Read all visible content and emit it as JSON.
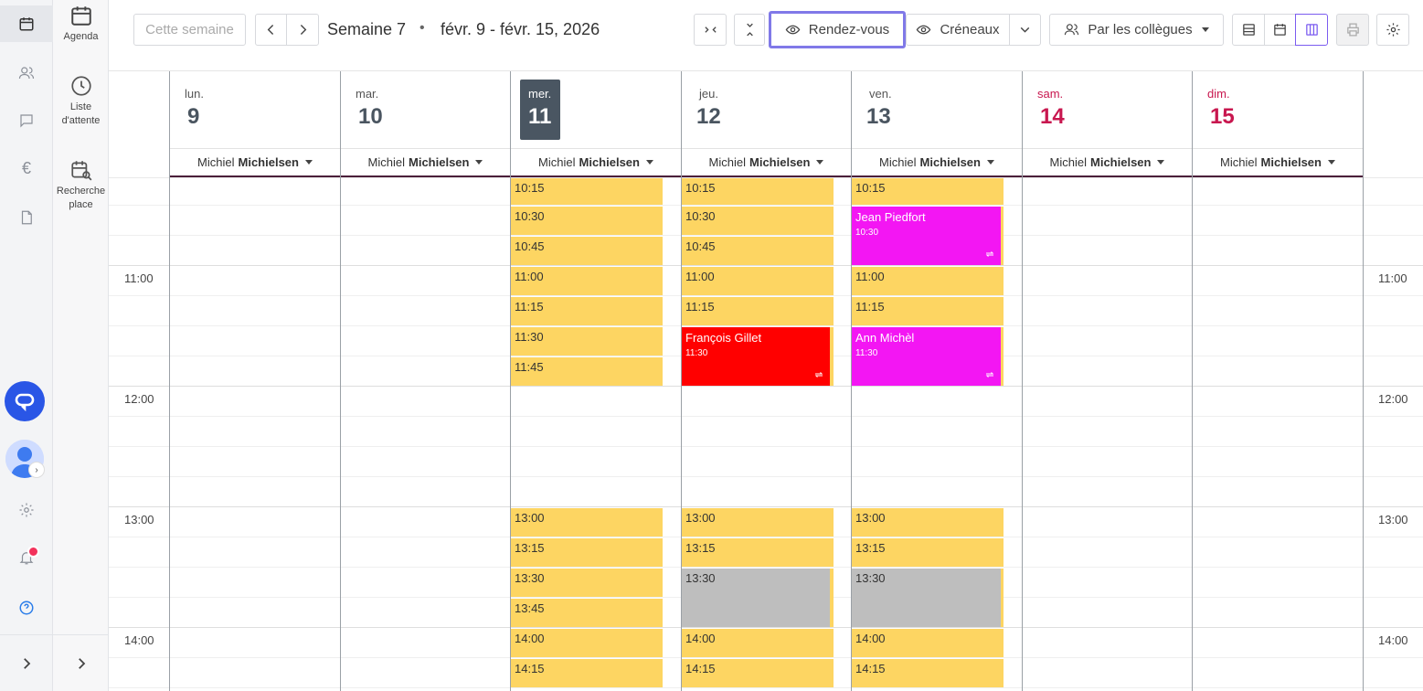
{
  "nav_rail": {
    "items": [
      {
        "icon": "calendar-icon",
        "active": true
      },
      {
        "icon": "users-icon"
      },
      {
        "icon": "message-icon"
      },
      {
        "icon": "euro-icon",
        "glyph": "€"
      },
      {
        "icon": "document-icon"
      }
    ]
  },
  "sub_rail": {
    "agenda_label": "Agenda",
    "waitlist_label_1": "Liste",
    "waitlist_label_2": "d'attente",
    "search_label_1": "Recherche",
    "search_label_2": "place"
  },
  "toolbar": {
    "this_week_label": "Cette semaine",
    "week_label": "Semaine 7",
    "separator": "•",
    "range_label": "févr. 9 - févr. 15, 2026",
    "appointments_label": "Rendez-vous",
    "slots_label": "Créneaux",
    "by_colleagues_label": "Par les collègues",
    "accent_color": "#8079e8"
  },
  "calendar": {
    "days": [
      {
        "dow": "lun.",
        "num": "9",
        "resource_first": "Michiel",
        "resource_last": "Michielsen"
      },
      {
        "dow": "mar.",
        "num": "10",
        "resource_first": "Michiel",
        "resource_last": "Michielsen"
      },
      {
        "dow": "mer.",
        "num": "11",
        "resource_first": "Michiel",
        "resource_last": "Michielsen",
        "today": true
      },
      {
        "dow": "jeu.",
        "num": "12",
        "resource_first": "Michiel",
        "resource_last": "Michielsen"
      },
      {
        "dow": "ven.",
        "num": "13",
        "resource_first": "Michiel",
        "resource_last": "Michielsen"
      },
      {
        "dow": "sam.",
        "num": "14",
        "resource_first": "Michiel",
        "resource_last": "Michielsen",
        "weekend": true
      },
      {
        "dow": "dim.",
        "num": "15",
        "resource_first": "Michiel",
        "resource_last": "Michielsen",
        "weekend": true
      }
    ],
    "hour_labels": [
      "11:00",
      "12:00",
      "13:00",
      "14:00"
    ],
    "slot_color": "#fdd562",
    "wednesday_slots": [
      "10:15",
      "10:30",
      "10:45",
      "11:00",
      "11:15",
      "11:30",
      "11:45",
      "13:00",
      "13:15",
      "13:30",
      "13:45",
      "14:00",
      "14:15"
    ],
    "thursday_slots": [
      "10:15",
      "10:30",
      "10:45",
      "11:00",
      "11:15",
      "13:00",
      "13:15",
      "13:30",
      "14:00",
      "14:15"
    ],
    "friday_slots": [
      "10:15",
      "11:00",
      "11:15",
      "13:00",
      "13:15",
      "13:30",
      "14:00",
      "14:15"
    ],
    "appointments": [
      {
        "name": "Jean Piedfort",
        "time": "10:30",
        "color": "#f316f3"
      },
      {
        "name": "François Gillet",
        "time": "11:30",
        "color": "#ff0000"
      },
      {
        "name": "Ann Michèl",
        "time": "11:30",
        "color": "#f316f3"
      }
    ]
  }
}
